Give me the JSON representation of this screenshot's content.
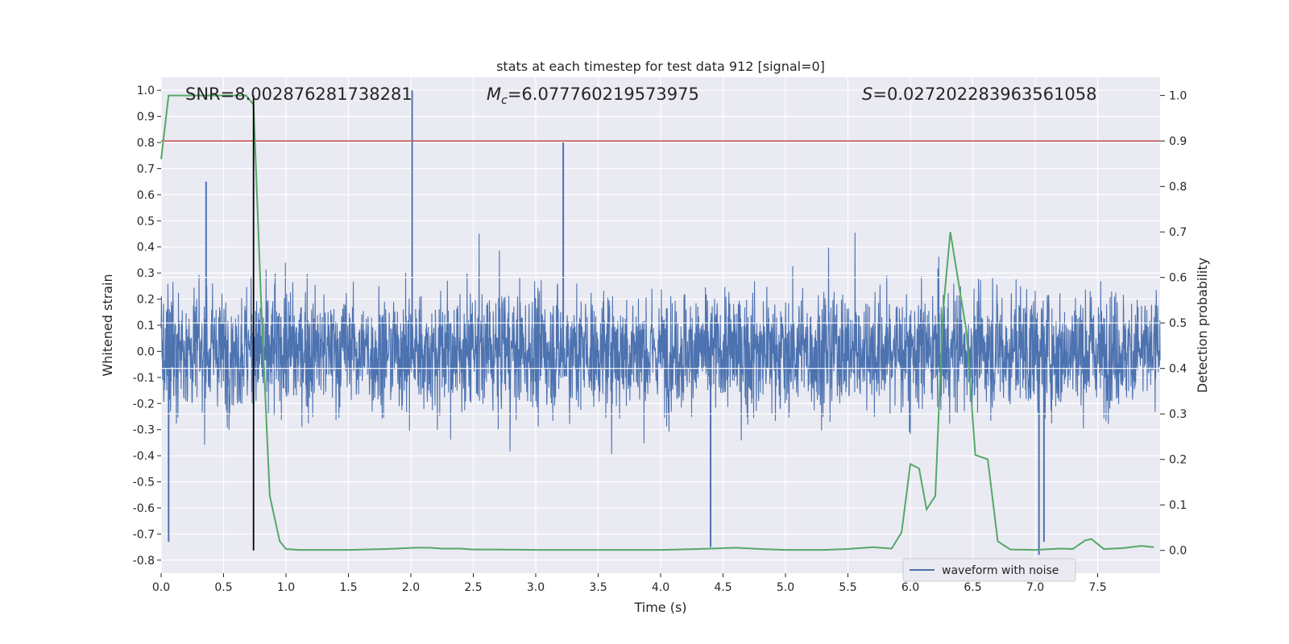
{
  "chart_data": {
    "type": "line",
    "title": "stats at each timestep for test data 912 [signal=0]",
    "xlabel": "Time (s)",
    "ylabel": "Whitened strain",
    "y2label": "Detection probability",
    "xlim": [
      0,
      8
    ],
    "ylim": [
      -0.85,
      1.05
    ],
    "y2lim": [
      -0.05,
      1.04
    ],
    "x_ticks": [
      "0.0",
      "0.5",
      "1.0",
      "1.5",
      "2.0",
      "2.5",
      "3.0",
      "3.5",
      "4.0",
      "4.5",
      "5.0",
      "5.5",
      "6.0",
      "6.5",
      "7.0",
      "7.5"
    ],
    "y_ticks": [
      "1.0",
      "0.9",
      "0.8",
      "0.7",
      "0.6",
      "0.5",
      "0.4",
      "0.3",
      "0.2",
      "0.1",
      "0.0",
      "-0.1",
      "-0.2",
      "-0.3",
      "-0.4",
      "-0.5",
      "-0.6",
      "-0.7",
      "-0.8"
    ],
    "y2_ticks": [
      "1.0",
      "0.9",
      "0.8",
      "0.7",
      "0.6",
      "0.5",
      "0.4",
      "0.3",
      "0.2",
      "0.1",
      "0.0"
    ],
    "grid": true,
    "legend": {
      "location": "lower-right",
      "entries": [
        "waveform with noise"
      ]
    },
    "annotations": {
      "snr": "SNR=8.002876281738281",
      "mc_symbol": "M",
      "mc_sub": "c",
      "mc_value": "=6.077760219573975",
      "s_symbol": "S",
      "s_value": "=0.027202283963561058"
    },
    "threshold": {
      "y2": 0.9,
      "color": "#c44e52"
    },
    "marker_time": 0.74,
    "colors": {
      "waveform": "#4c72b0",
      "probability": "#55a868",
      "threshold": "#c44e52",
      "marker": "#000000",
      "plot_bg": "#eaeaf2"
    },
    "series": [
      {
        "name": "waveform with noise",
        "kind": "noise_envelope",
        "typical_amplitude": 0.38,
        "peak_spikes": [
          {
            "x": 0.06,
            "y": -0.73
          },
          {
            "x": 0.36,
            "y": 0.65
          },
          {
            "x": 2.01,
            "y": 1.0
          },
          {
            "x": 3.22,
            "y": 0.8
          },
          {
            "x": 4.4,
            "y": -0.75
          },
          {
            "x": 7.03,
            "y": -0.78
          },
          {
            "x": 7.07,
            "y": -0.73
          }
        ]
      },
      {
        "name": "",
        "kind": "detection_probability",
        "axis": "right",
        "x": [
          0.0,
          0.06,
          0.12,
          0.2,
          0.3,
          0.4,
          0.5,
          0.6,
          0.68,
          0.74,
          0.8,
          0.87,
          0.95,
          1.0,
          1.1,
          1.3,
          1.5,
          1.8,
          2.05,
          2.15,
          2.25,
          2.4,
          2.5,
          2.7,
          3.0,
          3.5,
          4.0,
          4.3,
          4.6,
          4.8,
          5.0,
          5.3,
          5.5,
          5.7,
          5.85,
          5.93,
          6.0,
          6.07,
          6.13,
          6.2,
          6.26,
          6.32,
          6.45,
          6.52,
          6.62,
          6.7,
          6.8,
          7.0,
          7.2,
          7.3,
          7.4,
          7.45,
          7.55,
          7.7,
          7.85,
          7.95
        ],
        "y": [
          0.86,
          1.0,
          1.0,
          1.0,
          1.0,
          1.0,
          1.0,
          1.0,
          1.0,
          0.98,
          0.55,
          0.12,
          0.02,
          0.003,
          0.001,
          0.001,
          0.001,
          0.003,
          0.006,
          0.006,
          0.004,
          0.004,
          0.002,
          0.002,
          0.001,
          0.001,
          0.001,
          0.003,
          0.006,
          0.003,
          0.001,
          0.001,
          0.003,
          0.007,
          0.004,
          0.04,
          0.19,
          0.18,
          0.09,
          0.12,
          0.52,
          0.7,
          0.48,
          0.21,
          0.2,
          0.02,
          0.002,
          0.001,
          0.004,
          0.003,
          0.022,
          0.025,
          0.003,
          0.005,
          0.01,
          0.007
        ]
      }
    ]
  }
}
